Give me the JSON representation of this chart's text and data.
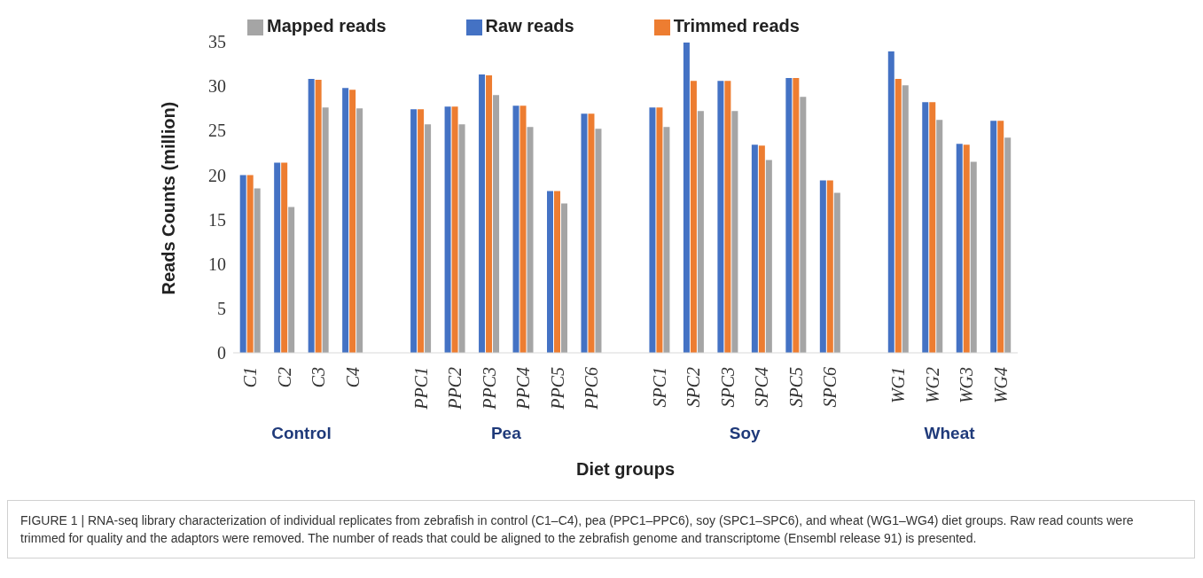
{
  "chart_data": {
    "type": "bar",
    "xlabel": "Diet groups",
    "ylabel": "Reads Counts (million)",
    "categories": [
      "C1",
      "C2",
      "C3",
      "C4",
      null,
      "PPC1",
      "PPC2",
      "PPC3",
      "PPC4",
      "PPC5",
      "PPC6",
      null,
      "SPC1",
      "SPC2",
      "SPC3",
      "SPC4",
      "SPC5",
      "SPC6",
      null,
      "WG1",
      "WG2",
      "WG3",
      "WG4"
    ],
    "series": [
      {
        "name": "Raw reads",
        "color": "#4472c4",
        "values": [
          20.0,
          21.4,
          30.8,
          29.8,
          null,
          27.4,
          27.7,
          31.3,
          27.8,
          18.2,
          26.9,
          null,
          27.6,
          34.9,
          30.6,
          23.4,
          30.9,
          19.4,
          null,
          33.9,
          28.2,
          23.5,
          26.1
        ]
      },
      {
        "name": "Trimmed reads",
        "color": "#ed7d31",
        "values": [
          20.0,
          21.4,
          30.7,
          29.6,
          null,
          27.4,
          27.7,
          31.2,
          27.8,
          18.2,
          26.9,
          null,
          27.6,
          30.6,
          30.6,
          23.3,
          30.9,
          19.4,
          null,
          30.8,
          28.2,
          23.4,
          26.1
        ]
      },
      {
        "name": "Mapped reads",
        "color": "#a5a5a5",
        "values": [
          18.5,
          16.4,
          27.6,
          27.5,
          null,
          25.7,
          25.7,
          29.0,
          25.4,
          16.8,
          25.2,
          null,
          25.4,
          27.2,
          27.2,
          21.7,
          28.8,
          18.0,
          null,
          30.1,
          26.2,
          21.5,
          24.2
        ]
      }
    ],
    "ylim": [
      0,
      35
    ],
    "yticks": [
      0,
      5,
      10,
      15,
      20,
      25,
      30,
      35
    ],
    "grid": false,
    "legend": "top",
    "annotations": [
      "Control",
      "Pea",
      "Soy",
      "Wheat",
      "FIGURE 1 | RNA-seq library characterization of individual replicates from zebrafish in control (C1–C4), pea (PPC1–PPC6), soy (SPC1–SPC6), and wheat (WG1–WG4) diet groups. Raw read counts were trimmed for quality and the adaptors were removed. The number of reads that could be aligned to the zebrafish genome and transcriptome (Ensembl release 91) is presented."
    ]
  }
}
